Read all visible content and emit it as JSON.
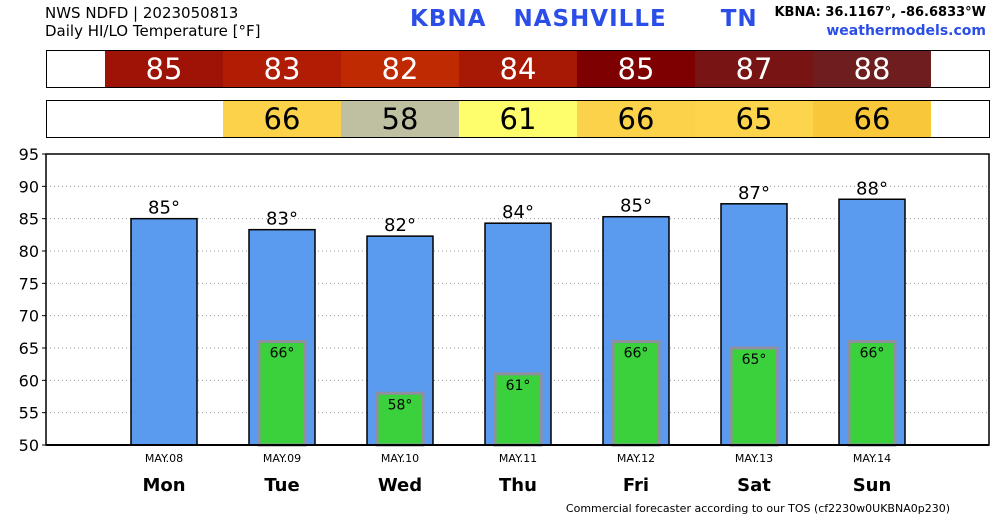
{
  "header": {
    "line1": "NWS NDFD | 2023050813",
    "line2": "Daily HI/LO Temperature [°F]",
    "station": "KBNA",
    "city": "NASHVILLE",
    "state": "TN",
    "coords": "KBNA: 36.1167°, -86.6833°W",
    "website": "weathermodels.com"
  },
  "hi_strip": [
    {
      "value": "85",
      "color": "#9e1306"
    },
    {
      "value": "83",
      "color": "#b01d04"
    },
    {
      "value": "82",
      "color": "#bf2a02"
    },
    {
      "value": "84",
      "color": "#a71805"
    },
    {
      "value": "85",
      "color": "#7f0000"
    },
    {
      "value": "87",
      "color": "#781414"
    },
    {
      "value": "88",
      "color": "#6e1e1e"
    }
  ],
  "lo_strip": [
    {
      "value": "",
      "color": "#ffffff"
    },
    {
      "value": "66",
      "color": "#fcd24a"
    },
    {
      "value": "58",
      "color": "#bfbfa2"
    },
    {
      "value": "61",
      "color": "#fefe6c"
    },
    {
      "value": "66",
      "color": "#fcd24a"
    },
    {
      "value": "65",
      "color": "#fcd54c"
    },
    {
      "value": "66",
      "color": "#f9c83a"
    }
  ],
  "chart_data": {
    "type": "bar",
    "categories": [
      "Mon",
      "Tue",
      "Wed",
      "Thu",
      "Fri",
      "Sat",
      "Sun"
    ],
    "dates": [
      "MAY.08",
      "MAY.09",
      "MAY.10",
      "MAY.11",
      "MAY.12",
      "MAY.13",
      "MAY.14"
    ],
    "series": [
      {
        "values": [
          85,
          83.3,
          82.3,
          84.3,
          85.3,
          87.3,
          88
        ],
        "labels": [
          "85°",
          "83°",
          "82°",
          "84°",
          "85°",
          "87°",
          "88°"
        ],
        "color": "#5b9bef"
      },
      {
        "values": [
          null,
          66,
          58,
          61,
          66,
          65,
          66
        ],
        "labels": [
          "",
          "66°",
          "58°",
          "61°",
          "66°",
          "65°",
          "66°"
        ],
        "color": "#3ad13c"
      }
    ],
    "ylim": [
      50,
      95
    ],
    "yticks": [
      50,
      55,
      60,
      65,
      70,
      75,
      80,
      85,
      90,
      95
    ],
    "grid": true,
    "xlabel": "",
    "ylabel": ""
  },
  "footer": "Commercial forecaster according to our TOS (cf2230w0UKBNA0p230)"
}
